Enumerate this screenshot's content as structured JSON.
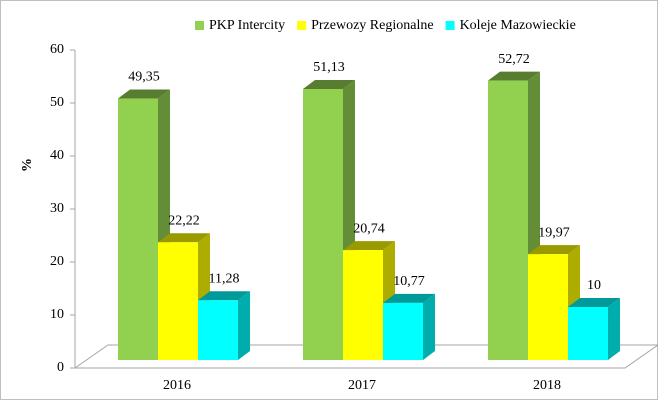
{
  "chart_data": {
    "type": "bar3d",
    "y_label": "%",
    "categories": [
      "2016",
      "2017",
      "2018"
    ],
    "series": [
      {
        "name": "PKP Intercity",
        "color": "#92d050",
        "values": [
          49.35,
          51.13,
          52.72
        ],
        "value_labels": [
          "49,35",
          "51,13",
          "52,72"
        ]
      },
      {
        "name": "Przewozy Regionalne",
        "color": "#ffff00",
        "values": [
          22.22,
          20.74,
          19.97
        ],
        "value_labels": [
          "22,22",
          "20,74",
          "19,97"
        ]
      },
      {
        "name": "Koleje Mazowieckie",
        "color": "#00ffff",
        "values": [
          11.28,
          10.77,
          10
        ],
        "value_labels": [
          "11,28",
          "10,77",
          "10"
        ]
      }
    ],
    "ylim": [
      0,
      60
    ],
    "yticks": [
      0,
      10,
      20,
      30,
      40,
      50,
      60
    ],
    "legend": "top-right"
  }
}
